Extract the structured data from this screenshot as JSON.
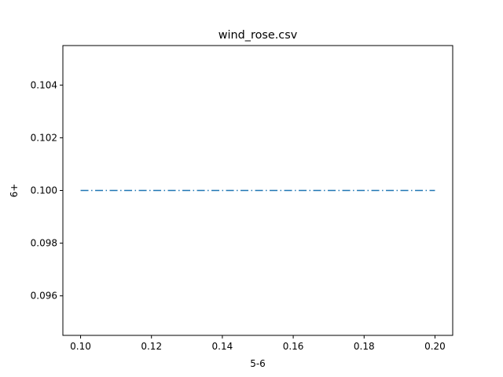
{
  "chart_data": {
    "type": "line",
    "title": "wind_rose.csv",
    "xlabel": "5-6",
    "ylabel": "6+",
    "xlim": [
      0.095,
      0.205
    ],
    "ylim": [
      0.0945,
      0.1055
    ],
    "x_ticks": [
      0.1,
      0.12,
      0.14,
      0.16,
      0.18,
      0.2
    ],
    "x_tick_labels": [
      "0.10",
      "0.12",
      "0.14",
      "0.16",
      "0.18",
      "0.20"
    ],
    "y_ticks": [
      0.096,
      0.098,
      0.1,
      0.102,
      0.104
    ],
    "y_tick_labels": [
      "0.096",
      "0.098",
      "0.100",
      "0.102",
      "0.104"
    ],
    "grid": false,
    "series": [
      {
        "x": [
          0.1,
          0.2
        ],
        "y": [
          0.1,
          0.1
        ],
        "color": "#1f77b4",
        "linestyle": "dashdot"
      }
    ]
  }
}
